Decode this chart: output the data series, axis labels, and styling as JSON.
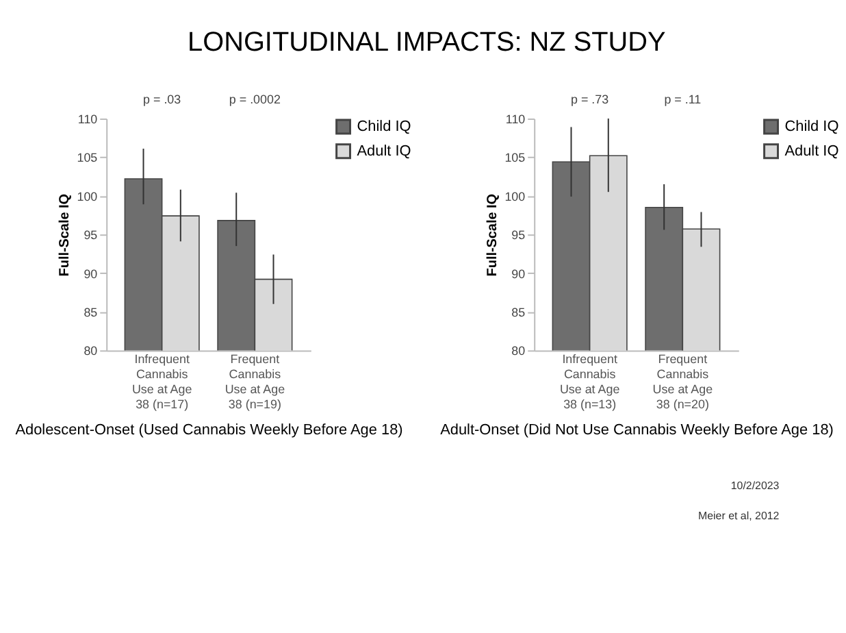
{
  "chart_data": [
    {
      "type": "bar",
      "title": "LONGITUDINAL IMPACTS: NZ STUDY",
      "xlabel": "Adolescent-Onset (Used Cannabis Weekly Before Age 18)",
      "ylabel": "Full-Scale IQ",
      "categories": [
        "Infrequent Cannabis Use at Age 38 (n=17)",
        "Frequent Cannabis Use at Age 38 (n=19)"
      ],
      "series": [
        {
          "name": "Child IQ",
          "color": "#6e6e6e",
          "values": [
            102.2,
            96.8
          ],
          "errors": [
            [
              98.9,
              106.1
            ],
            [
              93.5,
              100.4
            ]
          ]
        },
        {
          "name": "Adult IQ",
          "color": "#d9d9d9",
          "values": [
            97.4,
            89.2
          ],
          "errors": [
            [
              94.1,
              100.8
            ],
            [
              86.0,
              92.4
            ]
          ]
        }
      ],
      "ylim": [
        80,
        110
      ],
      "yticks": [
        80,
        85,
        90,
        95,
        100,
        105,
        110
      ],
      "grid": false,
      "legend": "right",
      "annotations": [
        "p = .03",
        "p = .0002"
      ]
    },
    {
      "type": "bar",
      "xlabel": "Adult-Onset (Did Not Use Cannabis Weekly Before Age 18)",
      "ylabel": "Full-Scale IQ",
      "categories": [
        "Infrequent Cannabis Use at Age 38 (n=13)",
        "Frequent Cannabis Use at Age 38 (n=20)"
      ],
      "series": [
        {
          "name": "Child IQ",
          "color": "#6e6e6e",
          "values": [
            104.4,
            98.5
          ],
          "errors": [
            [
              99.9,
              108.9
            ],
            [
              95.6,
              101.5
            ]
          ]
        },
        {
          "name": "Adult IQ",
          "color": "#d9d9d9",
          "values": [
            105.2,
            95.7
          ],
          "errors": [
            [
              100.5,
              110
            ],
            [
              93.4,
              97.9
            ]
          ]
        }
      ],
      "ylim": [
        80,
        110
      ],
      "yticks": [
        80,
        85,
        90,
        95,
        100,
        105,
        110
      ],
      "grid": false,
      "legend": "right",
      "annotations": [
        "p = .73",
        "p = .11",
        "10/2/2023",
        "Meier et al, 2012"
      ]
    }
  ]
}
